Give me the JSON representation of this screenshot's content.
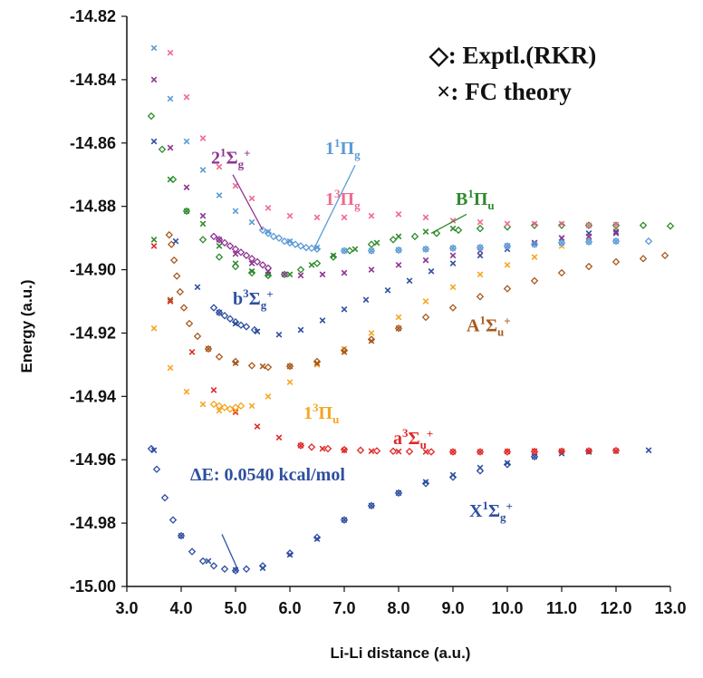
{
  "chart_data": {
    "type": "scatter",
    "xlabel": "Li-Li distance (a.u.)",
    "ylabel": "Energy (a.u.)",
    "xlim": [
      3.0,
      13.0
    ],
    "ylim": [
      -15.0,
      -14.82
    ],
    "xticks": [
      "3.0",
      "4.0",
      "5.0",
      "6.0",
      "7.0",
      "8.0",
      "9.0",
      "10.0",
      "11.0",
      "12.0",
      "13.0"
    ],
    "yticks": [
      "-15.00",
      "-14.98",
      "-14.96",
      "-14.94",
      "-14.92",
      "-14.90",
      "-14.88",
      "-14.86",
      "-14.84",
      "-14.82"
    ],
    "grid": false,
    "legend": [
      {
        "marker": "◇",
        "text": ": Exptl.(RKR)"
      },
      {
        "marker": "×",
        "text": ": FC theory"
      }
    ],
    "annotation": {
      "text": "ΔE: 0.0540 kcal/mol",
      "x": 5.05,
      "y": -14.995
    },
    "series": [
      {
        "name": "X¹Σg⁺",
        "main": "X",
        "sup": "1",
        "sym": "Σ",
        "sub": "g",
        "plus": "+",
        "color": "#2E4FA0",
        "rkr_x": [
          3.45,
          3.55,
          3.7,
          3.85,
          4.0,
          4.2,
          4.4,
          4.6,
          4.8,
          5.0,
          5.2,
          5.5,
          6.0,
          6.5,
          7.0,
          7.5,
          8.0,
          8.5,
          9.0,
          9.5,
          10.0,
          10.5
        ],
        "rkr_y": [
          -14.9565,
          -14.963,
          -14.972,
          -14.979,
          -14.984,
          -14.989,
          -14.992,
          -14.9935,
          -14.9945,
          -14.995,
          -14.9945,
          -14.9935,
          -14.9895,
          -14.9845,
          -14.979,
          -14.9745,
          -14.9705,
          -14.9675,
          -14.9655,
          -14.9635,
          -14.9615,
          -14.959
        ],
        "fc_x": [
          3.5,
          4.0,
          4.5,
          5.0,
          5.5,
          6.0,
          6.5,
          7.0,
          7.5,
          8.0,
          8.5,
          9.0,
          9.5,
          10.0,
          10.5,
          11.0,
          11.5,
          12.0,
          12.6
        ],
        "fc_y": [
          -14.957,
          -14.984,
          -14.992,
          -14.9948,
          -14.9942,
          -14.99,
          -14.985,
          -14.979,
          -14.9745,
          -14.9705,
          -14.967,
          -14.9648,
          -14.9625,
          -14.961,
          -14.959,
          -14.958,
          -14.9575,
          -14.9572,
          -14.957
        ],
        "label_x": 9.3,
        "label_y": -14.978
      },
      {
        "name": "a³Σu⁺",
        "main": "a",
        "sup": "3",
        "sym": "Σ",
        "sub": "u",
        "plus": "+",
        "color": "#E02828",
        "rkr_x": [
          6.2,
          6.4,
          6.7,
          7.0,
          7.3,
          7.6,
          7.9,
          8.2,
          8.6,
          9.0,
          9.5,
          10.0,
          10.5,
          11.0,
          11.5,
          12.0
        ],
        "rkr_y": [
          -14.9555,
          -14.956,
          -14.9565,
          -14.9568,
          -14.957,
          -14.9572,
          -14.9573,
          -14.9574,
          -14.9575,
          -14.9575,
          -14.9575,
          -14.9575,
          -14.9574,
          -14.9573,
          -14.9572,
          -14.9571
        ],
        "fc_x": [
          3.5,
          3.8,
          4.2,
          4.6,
          5.0,
          5.4,
          5.8,
          6.2,
          6.6,
          7.0,
          7.5,
          8.0,
          8.5,
          9.0,
          9.5,
          10.0,
          10.5,
          11.0,
          11.5,
          12.0
        ],
        "fc_y": [
          -14.8925,
          -14.91,
          -14.926,
          -14.938,
          -14.945,
          -14.9495,
          -14.953,
          -14.9555,
          -14.9565,
          -14.957,
          -14.9573,
          -14.9574,
          -14.9575,
          -14.9575,
          -14.9575,
          -14.9574,
          -14.9573,
          -14.9573,
          -14.9572,
          -14.9572
        ],
        "label_x": 7.9,
        "label_y": -14.955
      },
      {
        "name": "1³Πu",
        "main": "1",
        "sup": "3",
        "sym": "Π",
        "sub": "u",
        "plus": "",
        "color": "#F5A623",
        "rkr_x": [
          4.6,
          4.7,
          4.8,
          4.9,
          5.0,
          5.1
        ],
        "rkr_y": [
          -14.9425,
          -14.943,
          -14.9435,
          -14.944,
          -14.9435,
          -14.943
        ],
        "fc_x": [
          3.5,
          3.8,
          4.1,
          4.4,
          4.7,
          5.0,
          5.3,
          5.6,
          6.0,
          6.5,
          7.0,
          7.5,
          8.0,
          8.5,
          9.0,
          9.5,
          10.0,
          10.5,
          11.0,
          11.5,
          12.0
        ],
        "fc_y": [
          -14.9185,
          -14.931,
          -14.9385,
          -14.9425,
          -14.9445,
          -14.9445,
          -14.943,
          -14.94,
          -14.9355,
          -14.93,
          -14.925,
          -14.92,
          -14.915,
          -14.91,
          -14.9055,
          -14.9015,
          -14.8985,
          -14.896,
          -14.8925,
          -14.8895,
          -14.887
        ],
        "label_x": 6.25,
        "label_y": -14.947
      },
      {
        "name": "A¹Σu⁺",
        "main": "A",
        "sup": "1",
        "sym": "Σ",
        "sub": "u",
        "plus": "+",
        "color": "#A85A1E",
        "rkr_x": [
          3.78,
          3.82,
          3.87,
          3.92,
          3.98,
          4.05,
          4.15,
          4.3,
          4.5,
          4.7,
          5.0,
          5.3,
          5.6,
          6.0,
          6.5,
          7.0,
          7.5,
          8.0,
          8.5,
          9.0,
          9.5,
          10.0,
          10.5,
          11.0,
          11.5,
          12.0,
          12.5,
          12.9
        ],
        "rkr_y": [
          -14.889,
          -14.892,
          -14.897,
          -14.902,
          -14.907,
          -14.912,
          -14.917,
          -14.921,
          -14.925,
          -14.9275,
          -14.929,
          -14.9303,
          -14.9308,
          -14.9305,
          -14.929,
          -14.9255,
          -14.922,
          -14.9185,
          -14.915,
          -14.912,
          -14.9085,
          -14.906,
          -14.9035,
          -14.901,
          -14.899,
          -14.8975,
          -14.8965,
          -14.8955
        ],
        "fc_x": [
          3.8,
          4.5,
          5.0,
          5.5,
          6.0,
          6.5,
          7.0,
          7.5,
          8.0
        ],
        "fc_y": [
          -14.9095,
          -14.925,
          -14.9295,
          -14.9305,
          -14.9305,
          -14.9295,
          -14.926,
          -14.9225,
          -14.9185
        ],
        "label_x": 9.25,
        "label_y": -14.9195
      },
      {
        "name": "b³Σg⁺",
        "main": "b",
        "sup": "3",
        "sym": "Σ",
        "sub": "g",
        "plus": "+",
        "color": "#2E4FA0",
        "rkr_x": [
          4.6,
          4.7,
          4.8,
          4.9,
          5.0,
          5.1,
          5.2,
          5.35
        ],
        "rkr_y": [
          -14.912,
          -14.9135,
          -14.9145,
          -14.9155,
          -14.9165,
          -14.9175,
          -14.918,
          -14.919
        ],
        "fc_x": [
          3.5,
          3.9,
          4.3,
          4.7,
          5.0,
          5.4,
          5.8,
          6.2,
          6.6,
          7.0,
          7.4,
          7.8,
          8.2,
          8.6,
          9.0,
          9.5,
          10.0,
          10.5,
          11.0,
          11.5,
          12.0
        ],
        "fc_y": [
          -14.8595,
          -14.891,
          -14.9055,
          -14.9135,
          -14.917,
          -14.9195,
          -14.9205,
          -14.919,
          -14.916,
          -14.9125,
          -14.9095,
          -14.9065,
          -14.9035,
          -14.9005,
          -14.898,
          -14.8955,
          -14.8935,
          -14.8915,
          -14.89,
          -14.8885,
          -14.888
        ],
        "label_x": 4.95,
        "label_y": -14.911
      },
      {
        "name": "B¹Πu",
        "main": "B",
        "sup": "1",
        "sym": "Π",
        "sub": "u",
        "plus": "",
        "color": "#2E8B2E",
        "rkr_x": [
          3.45,
          3.65,
          3.85,
          4.1,
          4.4,
          4.7,
          5.0,
          5.3,
          5.6,
          5.9,
          6.2,
          6.5,
          6.8,
          7.1,
          7.5,
          7.9,
          8.3,
          8.7,
          9.1,
          9.5,
          10.0,
          10.5,
          11.0,
          11.5,
          12.0,
          12.5,
          13.0
        ],
        "rkr_y": [
          -14.8515,
          -14.862,
          -14.8715,
          -14.8815,
          -14.8905,
          -14.896,
          -14.899,
          -14.901,
          -14.9018,
          -14.9015,
          -14.9,
          -14.898,
          -14.896,
          -14.894,
          -14.892,
          -14.8905,
          -14.8895,
          -14.8885,
          -14.8875,
          -14.887,
          -14.8865,
          -14.886,
          -14.886,
          -14.886,
          -14.886,
          -14.886,
          -14.8862
        ],
        "fc_x": [
          3.5,
          3.8,
          4.1,
          4.4,
          4.7,
          5.0,
          5.3,
          5.6,
          6.0,
          6.4,
          6.8,
          7.2,
          7.6,
          8.0,
          8.5,
          9.0
        ],
        "fc_y": [
          -14.8905,
          -14.8715,
          -14.8815,
          -14.8855,
          -14.8925,
          -14.898,
          -14.9005,
          -14.9015,
          -14.9015,
          -14.8985,
          -14.8955,
          -14.8935,
          -14.8915,
          -14.8895,
          -14.888,
          -14.887
        ],
        "label_x": 9.05,
        "label_y": -14.8795
      },
      {
        "name": "2¹Σg⁺",
        "main": "2",
        "sup": "1",
        "sym": "Σ",
        "sub": "g",
        "plus": "+",
        "color": "#8E3493",
        "rkr_x": [
          4.6,
          4.7,
          4.8,
          4.9,
          5.0,
          5.1,
          5.2,
          5.3,
          5.4,
          5.5,
          5.6
        ],
        "rkr_y": [
          -14.8895,
          -14.8905,
          -14.8915,
          -14.8925,
          -14.8935,
          -14.8945,
          -14.8955,
          -14.8965,
          -14.8975,
          -14.8985,
          -14.8995
        ],
        "fc_x": [
          3.5,
          3.8,
          4.1,
          4.4,
          4.7,
          5.0,
          5.3,
          5.6,
          5.9,
          6.2,
          6.6,
          7.0,
          7.5,
          8.0,
          8.5,
          9.0,
          9.5,
          10.0,
          10.5,
          11.0,
          11.5,
          12.0
        ],
        "fc_y": [
          -14.84,
          -14.8615,
          -14.874,
          -14.883,
          -14.8905,
          -14.895,
          -14.898,
          -14.9005,
          -14.9015,
          -14.9018,
          -14.9015,
          -14.901,
          -14.9,
          -14.8985,
          -14.897,
          -14.8955,
          -14.894,
          -14.8925,
          -14.8915,
          -14.89,
          -14.8895,
          -14.8885
        ],
        "label_x": 4.55,
        "label_y": -14.8665
      },
      {
        "name": "1¹Πg",
        "main": "1",
        "sup": "1",
        "sym": "Π",
        "sub": "g",
        "plus": "",
        "color": "#5B9BD5",
        "rkr_x": [
          5.5,
          5.6,
          5.7,
          5.8,
          5.9,
          6.0,
          6.1,
          6.2,
          6.3,
          6.4,
          6.5,
          7.0,
          7.5,
          8.0,
          8.5,
          9.0,
          9.5,
          10.0,
          10.5,
          11.0,
          11.5,
          12.0,
          12.6
        ],
        "rkr_y": [
          -14.8875,
          -14.8885,
          -14.8895,
          -14.89,
          -14.891,
          -14.8915,
          -14.892,
          -14.8925,
          -14.893,
          -14.8932,
          -14.8935,
          -14.894,
          -14.894,
          -14.8938,
          -14.8935,
          -14.8932,
          -14.893,
          -14.8925,
          -14.892,
          -14.8915,
          -14.8912,
          -14.891,
          -14.891
        ],
        "fc_x": [
          3.5,
          3.8,
          4.1,
          4.4,
          4.7,
          5.0,
          5.3,
          5.6,
          6.0,
          6.5,
          7.0,
          7.5,
          8.0,
          8.5,
          9.0,
          9.5,
          10.0,
          10.5,
          11.0,
          11.5,
          12.0
        ],
        "fc_y": [
          -14.83,
          -14.846,
          -14.8595,
          -14.8685,
          -14.8765,
          -14.8815,
          -14.885,
          -14.888,
          -14.891,
          -14.893,
          -14.894,
          -14.894,
          -14.8938,
          -14.8935,
          -14.8932,
          -14.893,
          -14.8925,
          -14.892,
          -14.8915,
          -14.8912,
          -14.891
        ],
        "label_x": 6.65,
        "label_y": -14.8635
      },
      {
        "name": "1³Πg",
        "main": "1",
        "sup": "3",
        "sym": "Π",
        "sub": "g",
        "plus": "",
        "color": "#F06A8C",
        "rkr_x": [],
        "rkr_y": [],
        "fc_x": [
          3.8,
          4.1,
          4.4,
          4.7,
          5.0,
          5.3,
          5.6,
          6.0,
          6.5,
          7.0,
          7.5,
          8.0,
          8.5,
          9.0,
          9.5,
          10.0,
          10.5,
          11.0,
          11.5,
          12.0
        ],
        "fc_y": [
          -14.8315,
          -14.8455,
          -14.8585,
          -14.8675,
          -14.8735,
          -14.8775,
          -14.8805,
          -14.883,
          -14.8835,
          -14.8835,
          -14.883,
          -14.8825,
          -14.8835,
          -14.8845,
          -14.885,
          -14.8855,
          -14.8855,
          -14.8855,
          -14.886,
          -14.8858
        ],
        "label_x": 6.65,
        "label_y": -14.8795
      }
    ]
  },
  "colors": {
    "axis": "#111111",
    "leader_dark": "#2E4FA0"
  }
}
